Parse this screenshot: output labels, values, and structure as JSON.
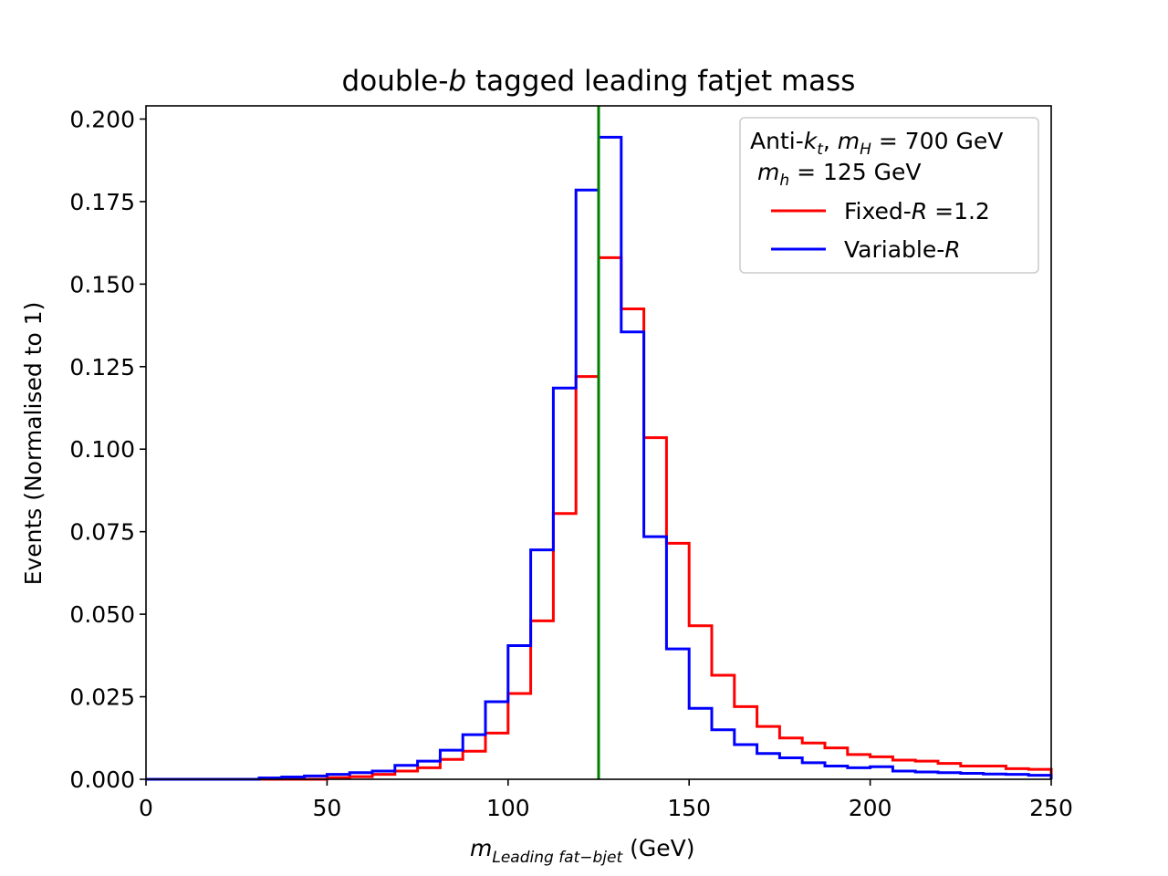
{
  "chart_data": {
    "type": "step-histogram",
    "title": {
      "prefix": "double-",
      "italic": "b",
      "suffix": " tagged leading fatjet mass"
    },
    "xlabel": {
      "main": "m",
      "sub": "Leading fat−bjet",
      "unit": " (GeV)"
    },
    "ylabel": "Events (Normalised to 1)",
    "xlim": [
      0,
      250
    ],
    "ylim": [
      0,
      0.204
    ],
    "x_ticks": [
      "0",
      "50",
      "100",
      "150",
      "200",
      "250"
    ],
    "y_ticks": [
      "0.000",
      "0.025",
      "0.050",
      "0.075",
      "0.100",
      "0.125",
      "0.150",
      "0.175",
      "0.200"
    ],
    "bin_edges": [
      0,
      6.25,
      12.5,
      18.75,
      25,
      31.25,
      37.5,
      43.75,
      50,
      56.25,
      62.5,
      68.75,
      75,
      81.25,
      87.5,
      93.75,
      100,
      106.25,
      112.5,
      118.75,
      125,
      131.25,
      137.5,
      143.75,
      150,
      156.25,
      162.5,
      168.75,
      175,
      181.25,
      187.5,
      193.75,
      200,
      206.25,
      212.5,
      218.75,
      225,
      231.25,
      237.5,
      243.75,
      250
    ],
    "vline_x": 125,
    "vline_color": "#008000",
    "legend": {
      "title_line1": {
        "prefix": "Anti-",
        "k": "k",
        "k_sub": "t",
        "sep": ", ",
        "m": "m",
        "m_sub": "H",
        "value": " = 700 GeV"
      },
      "title_line2": {
        "m": "m",
        "m_sub": "h",
        "value": " = 125 GeV"
      },
      "placement": "top-right"
    },
    "series": [
      {
        "name_prefix": "Fixed-",
        "name_italic": "R",
        "name_suffix": " =1.2",
        "color": "#ff0000",
        "values": [
          0.0,
          0.0,
          0.0,
          0.0,
          0.0,
          0.0,
          0.0,
          0.0,
          0.0005,
          0.0008,
          0.0015,
          0.0025,
          0.0035,
          0.006,
          0.0085,
          0.014,
          0.026,
          0.048,
          0.0805,
          0.122,
          0.158,
          0.1425,
          0.1035,
          0.0715,
          0.0465,
          0.0315,
          0.022,
          0.016,
          0.0125,
          0.011,
          0.0095,
          0.0075,
          0.0068,
          0.0058,
          0.0055,
          0.0048,
          0.004,
          0.004,
          0.0032,
          0.003
        ]
      },
      {
        "name_prefix": "Variable-",
        "name_italic": "R",
        "name_suffix": "",
        "color": "#0000ff",
        "values": [
          0.0,
          0.0,
          0.0,
          0.0,
          0.0,
          0.0004,
          0.0007,
          0.001,
          0.0015,
          0.002,
          0.0025,
          0.0042,
          0.0055,
          0.0088,
          0.0135,
          0.0235,
          0.0405,
          0.0695,
          0.1185,
          0.1785,
          0.1945,
          0.1355,
          0.0735,
          0.0395,
          0.0215,
          0.015,
          0.0105,
          0.0078,
          0.0065,
          0.005,
          0.004,
          0.0035,
          0.0038,
          0.0025,
          0.0022,
          0.002,
          0.0018,
          0.0016,
          0.0015,
          0.0012
        ]
      }
    ]
  }
}
